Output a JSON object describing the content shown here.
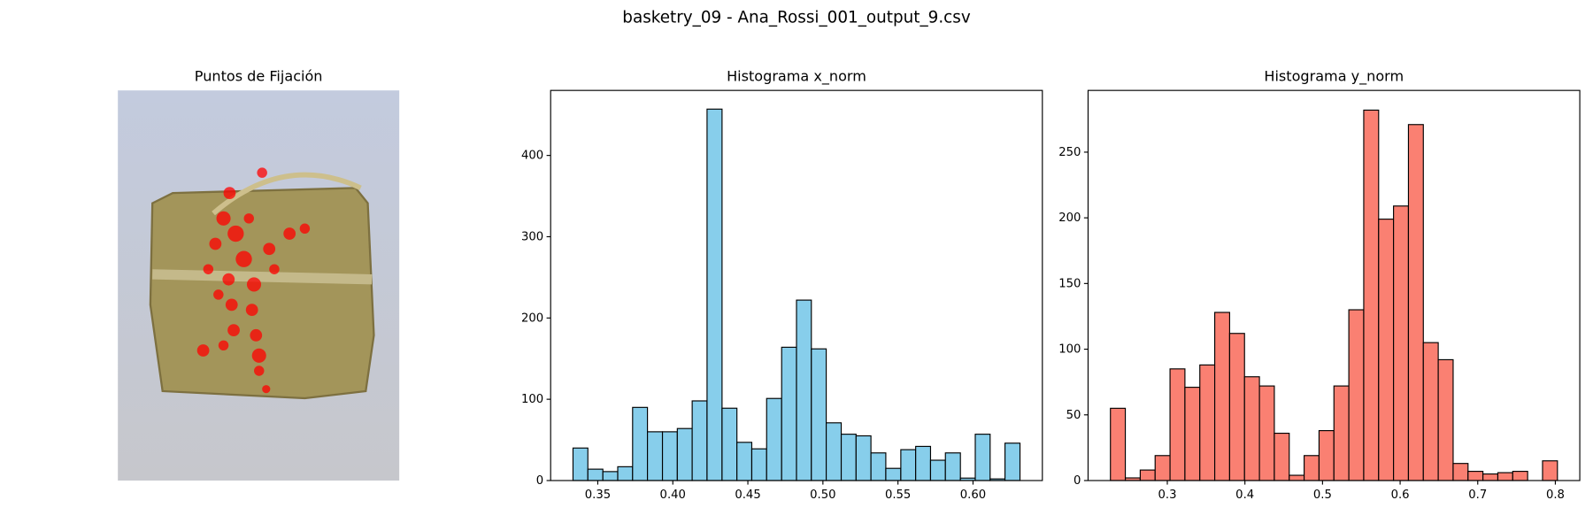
{
  "title": "basketry_09 - Ana_Rossi_001_output_9.csv",
  "chart_data": [
    {
      "type": "image",
      "title": "Puntos de Fijación"
    },
    {
      "type": "histogram",
      "title": "Histograma x_norm",
      "color": "#87ceeb",
      "edgecolor": "#000000",
      "bins": [
        0.3335,
        0.3434,
        0.3534,
        0.3633,
        0.3732,
        0.3831,
        0.3931,
        0.403,
        0.4129,
        0.4228,
        0.4328,
        0.4427,
        0.4526,
        0.4625,
        0.4725,
        0.4824,
        0.4923,
        0.5022,
        0.5122,
        0.5221,
        0.532,
        0.5419,
        0.5519,
        0.5618,
        0.5717,
        0.5816,
        0.5916,
        0.6015,
        0.6114,
        0.6213,
        0.6313
      ],
      "values": [
        40,
        14,
        11,
        17,
        90,
        60,
        60,
        64,
        98,
        457,
        89,
        47,
        39,
        101,
        164,
        222,
        162,
        71,
        57,
        55,
        34,
        15,
        38,
        42,
        25,
        34,
        3,
        57,
        2,
        46
      ],
      "xlim": [
        0.3186,
        0.6462
      ],
      "xticks": [
        0.35,
        {
          "value": 0.4,
          "label": "0.40"
        },
        0.45,
        {
          "value": 0.5,
          "label": "0.50"
        },
        0.55,
        {
          "value": 0.6,
          "label": "0.60"
        }
      ],
      "ylim": [
        0,
        480
      ],
      "yticks": [
        0,
        100,
        200,
        300,
        400
      ]
    },
    {
      "type": "histogram",
      "title": "Histograma y_norm",
      "color": "#fa8072",
      "edgecolor": "#000000",
      "bins": [
        0.2267,
        0.2459,
        0.2651,
        0.2843,
        0.3035,
        0.3227,
        0.3419,
        0.3611,
        0.3803,
        0.3995,
        0.4187,
        0.4379,
        0.4571,
        0.4763,
        0.4955,
        0.5147,
        0.5339,
        0.5531,
        0.5723,
        0.5915,
        0.6107,
        0.6299,
        0.6491,
        0.6683,
        0.6875,
        0.7067,
        0.7259,
        0.7451,
        0.7643,
        0.7835,
        0.8027
      ],
      "values": [
        55,
        2,
        8,
        19,
        85,
        71,
        88,
        128,
        112,
        79,
        72,
        36,
        4,
        19,
        38,
        72,
        130,
        282,
        199,
        209,
        271,
        105,
        92,
        13,
        7,
        5,
        6,
        7,
        0,
        15
      ],
      "xlim": [
        0.1979,
        0.8315
      ],
      "xticks": [
        0.3,
        0.4,
        0.5,
        0.6,
        0.7,
        0.8
      ],
      "ylim": [
        0,
        297
      ],
      "yticks": [
        0,
        50,
        100,
        150,
        200,
        250
      ]
    }
  ]
}
